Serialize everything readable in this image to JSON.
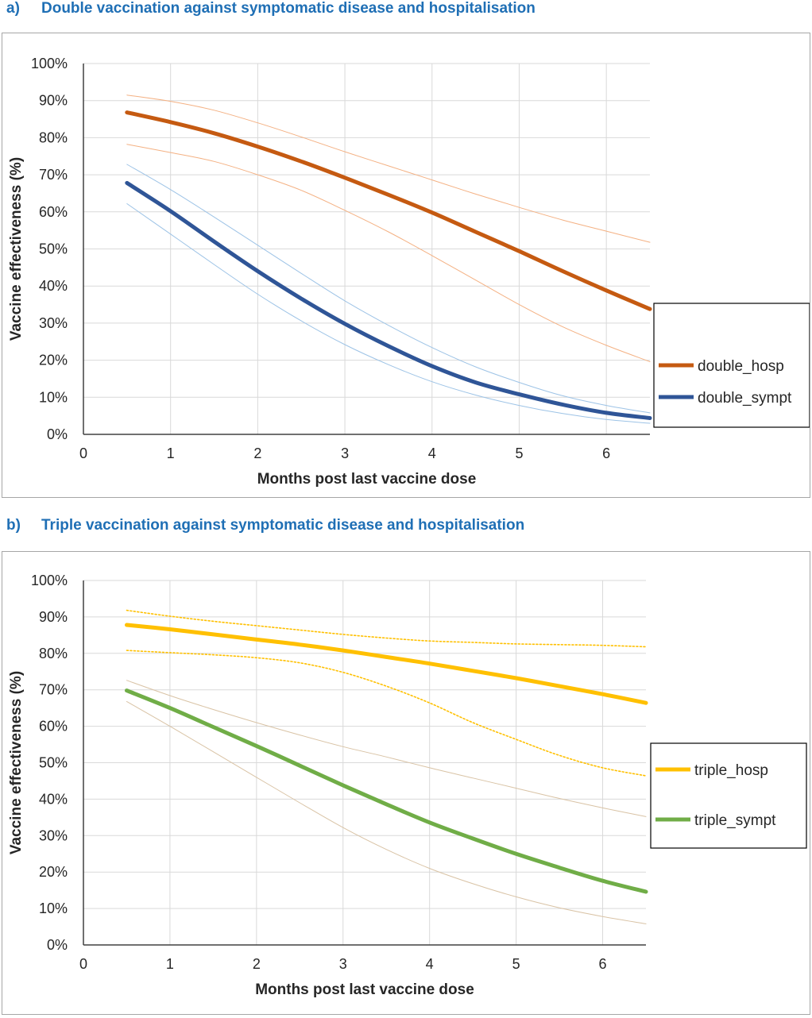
{
  "panels": [
    {
      "tag": "a)",
      "title": "Double vaccination against symptomatic disease and hospitalisation"
    },
    {
      "tag": "b)",
      "title": "Triple vaccination against symptomatic disease and hospitalisation"
    }
  ],
  "chart_data": [
    {
      "type": "line",
      "title": "Double vaccination against symptomatic disease and hospitalisation",
      "xlabel": "Months post last vaccine dose",
      "ylabel": "Vaccine effectiveness (%)",
      "xlim": [
        0,
        6.5
      ],
      "ylim": [
        0,
        100
      ],
      "x_ticks": [
        0,
        1,
        2,
        3,
        4,
        5,
        6
      ],
      "y_ticks": [
        0,
        10,
        20,
        30,
        40,
        50,
        60,
        70,
        80,
        90,
        100
      ],
      "y_tick_suffix": "%",
      "grid": true,
      "legend_position": "right",
      "x": [
        0.5,
        1,
        1.5,
        2,
        2.5,
        3,
        3.5,
        4,
        4.5,
        5,
        5.5,
        6,
        6.5
      ],
      "series": [
        {
          "name": "double_hosp",
          "color": "#c55a11",
          "role": "main",
          "values": [
            86.8,
            84.2,
            81.2,
            77.6,
            73.6,
            69.2,
            64.6,
            59.8,
            54.6,
            49.4,
            44.0,
            38.8,
            33.8
          ]
        },
        {
          "color": "#f4b183",
          "role": "ci",
          "style": "solid",
          "values": [
            91.5,
            89.8,
            87.4,
            84.0,
            80.2,
            76.2,
            72.4,
            68.6,
            64.8,
            61.2,
            57.8,
            54.8,
            51.8
          ]
        },
        {
          "color": "#f4b183",
          "role": "ci",
          "style": "solid",
          "values": [
            78.2,
            76.0,
            73.6,
            70.0,
            65.8,
            60.4,
            54.6,
            48.2,
            41.6,
            35.0,
            29.0,
            24.0,
            19.6
          ]
        },
        {
          "name": "double_sympt",
          "color": "#2f5597",
          "role": "main",
          "values": [
            67.8,
            60.2,
            52.0,
            44.0,
            36.6,
            29.8,
            23.8,
            18.4,
            14.0,
            10.8,
            8.0,
            5.8,
            4.4
          ]
        },
        {
          "color": "#9dc3e6",
          "role": "ci",
          "style": "solid",
          "values": [
            72.8,
            66.0,
            58.6,
            51.0,
            43.4,
            36.0,
            29.4,
            23.4,
            18.2,
            14.0,
            10.4,
            7.8,
            5.8
          ]
        },
        {
          "color": "#9dc3e6",
          "role": "ci",
          "style": "solid",
          "values": [
            62.2,
            54.0,
            45.8,
            37.8,
            30.6,
            24.2,
            18.8,
            14.2,
            10.6,
            7.8,
            5.6,
            4.0,
            3.0
          ]
        }
      ]
    },
    {
      "type": "line",
      "title": "Triple vaccination against symptomatic disease and hospitalisation",
      "xlabel": "Months post last vaccine dose",
      "ylabel": "Vaccine effectiveness (%)",
      "xlim": [
        0,
        6.5
      ],
      "ylim": [
        0,
        100
      ],
      "x_ticks": [
        0,
        1,
        2,
        3,
        4,
        5,
        6
      ],
      "y_ticks": [
        0,
        10,
        20,
        30,
        40,
        50,
        60,
        70,
        80,
        90,
        100
      ],
      "y_tick_suffix": "%",
      "grid": true,
      "legend_position": "right",
      "x": [
        0.5,
        1,
        1.5,
        2,
        2.5,
        3,
        3.5,
        4,
        4.5,
        5,
        5.5,
        6,
        6.5
      ],
      "series": [
        {
          "name": "triple_hosp",
          "color": "#ffc000",
          "role": "main",
          "values": [
            87.8,
            86.6,
            85.2,
            83.8,
            82.4,
            80.8,
            79.0,
            77.2,
            75.2,
            73.2,
            71.0,
            68.8,
            66.4
          ]
        },
        {
          "color": "#ffc000",
          "role": "ci",
          "style": "dotted",
          "values": [
            91.8,
            90.2,
            88.8,
            87.6,
            86.4,
            85.2,
            84.2,
            83.4,
            83.0,
            82.6,
            82.4,
            82.2,
            81.8
          ]
        },
        {
          "color": "#ffc000",
          "role": "ci",
          "style": "dotted",
          "values": [
            80.8,
            80.2,
            79.6,
            78.8,
            77.4,
            74.8,
            71.0,
            66.4,
            61.0,
            56.4,
            52.0,
            48.6,
            46.4
          ]
        },
        {
          "name": "triple_sympt",
          "color": "#70ad47",
          "role": "main",
          "values": [
            69.8,
            65.0,
            59.8,
            54.6,
            49.2,
            43.8,
            38.6,
            33.6,
            29.2,
            25.0,
            21.2,
            17.6,
            14.6
          ]
        },
        {
          "color": "#d9c3a5",
          "role": "ci",
          "style": "solid",
          "values": [
            72.6,
            68.4,
            64.6,
            61.0,
            57.6,
            54.4,
            51.6,
            48.6,
            45.8,
            43.0,
            40.2,
            37.6,
            35.2
          ]
        },
        {
          "color": "#d9c3a5",
          "role": "ci",
          "style": "solid",
          "values": [
            66.8,
            60.0,
            53.0,
            46.0,
            39.0,
            32.2,
            26.2,
            21.0,
            16.8,
            13.2,
            10.2,
            7.8,
            5.8
          ]
        }
      ]
    }
  ]
}
